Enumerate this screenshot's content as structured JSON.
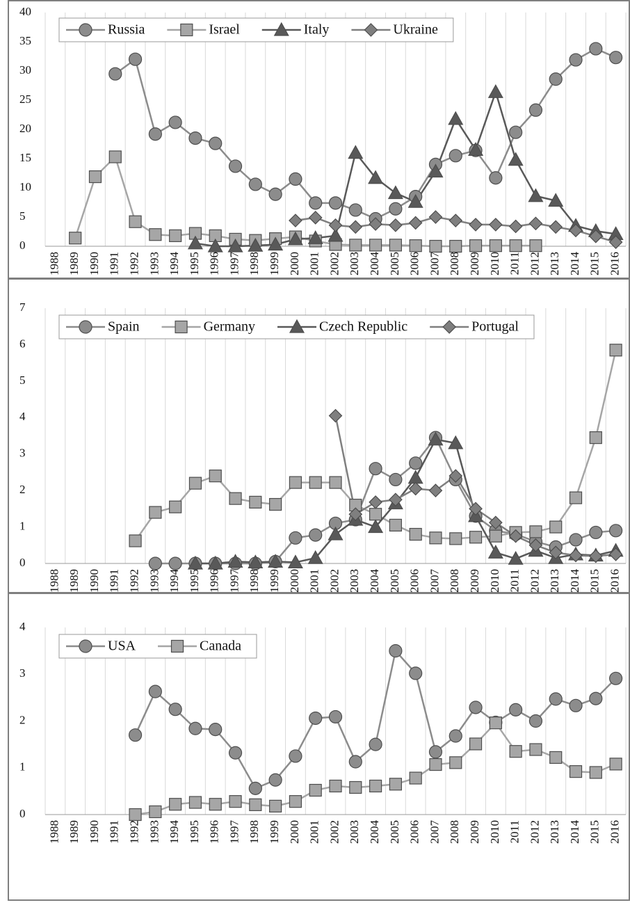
{
  "chart_data": [
    {
      "type": "line",
      "categories": [
        "1988",
        "1989",
        "1990",
        "1991",
        "1992",
        "1993",
        "1994",
        "1995",
        "1996",
        "1997",
        "1998",
        "1999",
        "2000",
        "2001",
        "2002",
        "2003",
        "2004",
        "2005",
        "2006",
        "2007",
        "2008",
        "2009",
        "2010",
        "2011",
        "2012",
        "2013",
        "2014",
        "2015",
        "2016"
      ],
      "ylim": [
        0,
        40
      ],
      "yticks": [
        0,
        5,
        10,
        15,
        20,
        25,
        30,
        35,
        40
      ],
      "legend": "top",
      "series": [
        {
          "name": "Russia",
          "color": "#8c8c8c",
          "marker": "circle",
          "values": [
            null,
            null,
            null,
            29.5,
            32,
            19.2,
            21.2,
            18.5,
            17.6,
            13.7,
            10.6,
            8.9,
            11.5,
            7.4,
            7.4,
            6.2,
            4.7,
            6.4,
            8.5,
            14,
            15.5,
            16.4,
            11.7,
            19.5,
            23.3,
            28.6,
            31.9,
            33.8,
            32.3
          ]
        },
        {
          "name": "Israel",
          "color": "#a6a6a6",
          "marker": "square",
          "values": [
            null,
            1.4,
            11.9,
            15.3,
            4.2,
            2,
            1.8,
            2.2,
            1.8,
            1.2,
            1,
            1.3,
            1.6,
            0.9,
            0.3,
            0.2,
            0.2,
            0.2,
            0.1,
            0,
            0,
            0.1,
            0.1,
            0.1,
            0.1,
            null,
            null,
            null,
            null
          ]
        },
        {
          "name": "Italy",
          "color": "#595959",
          "marker": "triangle",
          "values": [
            null,
            null,
            null,
            null,
            null,
            null,
            null,
            0.5,
            0,
            0,
            0.1,
            0.3,
            1.2,
            1.4,
            1.8,
            16,
            11.7,
            9.1,
            7.6,
            12.8,
            21.8,
            16.5,
            26.4,
            14.8,
            8.6,
            7.8,
            3.5,
            2.6,
            2.1
          ]
        },
        {
          "name": "Ukraine",
          "color": "#7f7f7f",
          "marker": "diamond",
          "values": [
            null,
            null,
            null,
            null,
            null,
            null,
            null,
            null,
            null,
            null,
            null,
            null,
            4.4,
            4.9,
            3.6,
            3.3,
            3.8,
            3.6,
            4,
            5,
            4.4,
            3.7,
            3.7,
            3.4,
            3.9,
            3.3,
            2.7,
            1.7,
            0.7
          ]
        }
      ]
    },
    {
      "type": "line",
      "categories": [
        "1988",
        "1989",
        "1990",
        "1991",
        "1992",
        "1993",
        "1994",
        "1995",
        "1996",
        "1997",
        "1998",
        "1999",
        "2000",
        "2001",
        "2002",
        "2003",
        "2004",
        "2005",
        "2006",
        "2007",
        "2008",
        "2009",
        "2010",
        "2011",
        "2012",
        "2013",
        "2014",
        "2015",
        "2016"
      ],
      "ylim": [
        0,
        7
      ],
      "yticks": [
        0,
        1,
        2,
        3,
        4,
        5,
        6,
        7
      ],
      "legend": "top",
      "series": [
        {
          "name": "Spain",
          "color": "#8c8c8c",
          "marker": "circle",
          "values": [
            null,
            null,
            null,
            null,
            null,
            0,
            0,
            0,
            0,
            0,
            0,
            0.05,
            0.7,
            0.78,
            1.1,
            1.2,
            2.6,
            2.3,
            2.75,
            3.45,
            2.3,
            1.3,
            0.9,
            0.8,
            0.6,
            0.45,
            0.65,
            0.85,
            0.9
          ]
        },
        {
          "name": "Germany",
          "color": "#a6a6a6",
          "marker": "square",
          "values": [
            null,
            null,
            null,
            null,
            0.62,
            1.4,
            1.55,
            2.2,
            2.4,
            1.78,
            1.68,
            1.62,
            2.22,
            2.22,
            2.22,
            1.6,
            1.35,
            1.05,
            0.8,
            0.7,
            0.68,
            0.72,
            0.75,
            0.85,
            0.87,
            1,
            1.8,
            3.45,
            5.85
          ]
        },
        {
          "name": "Czech Republic",
          "color": "#595959",
          "marker": "triangle",
          "values": [
            null,
            null,
            null,
            null,
            null,
            null,
            null,
            0,
            0,
            0.05,
            0.03,
            0.05,
            0.03,
            0.15,
            0.8,
            1.2,
            1,
            1.65,
            2.35,
            3.4,
            3.3,
            1.3,
            0.3,
            0.13,
            0.35,
            0.15,
            0.25,
            0.22,
            0.35
          ]
        },
        {
          "name": "Portugal",
          "color": "#7f7f7f",
          "marker": "diamond",
          "values": [
            null,
            null,
            null,
            null,
            null,
            null,
            null,
            null,
            null,
            null,
            null,
            null,
            null,
            null,
            4.05,
            1.35,
            1.68,
            1.75,
            2.05,
            2,
            2.4,
            1.5,
            1.12,
            0.75,
            0.5,
            0.3,
            0.22,
            0.2,
            0.25
          ]
        }
      ]
    },
    {
      "type": "line",
      "categories": [
        "1988",
        "1989",
        "1990",
        "1991",
        "1992",
        "1993",
        "1994",
        "1995",
        "1996",
        "1997",
        "1998",
        "1999",
        "2000",
        "2001",
        "2002",
        "2003",
        "2004",
        "2005",
        "2006",
        "2007",
        "2008",
        "2009",
        "2010",
        "2011",
        "2012",
        "2013",
        "2014",
        "2015",
        "2016"
      ],
      "ylim": [
        0,
        4
      ],
      "yticks": [
        0,
        1,
        2,
        3,
        4
      ],
      "legend": "top",
      "series": [
        {
          "name": "USA",
          "color": "#8c8c8c",
          "marker": "circle",
          "values": [
            null,
            null,
            null,
            null,
            1.7,
            2.63,
            2.25,
            1.84,
            1.82,
            1.32,
            0.56,
            0.74,
            1.25,
            2.06,
            2.09,
            1.13,
            1.5,
            3.5,
            3.02,
            1.34,
            1.68,
            2.29,
            1.97,
            2.24,
            2,
            2.47,
            2.33,
            2.48,
            2.91
          ]
        },
        {
          "name": "Canada",
          "color": "#a6a6a6",
          "marker": "square",
          "values": [
            null,
            null,
            null,
            null,
            0,
            0.06,
            0.22,
            0.26,
            0.22,
            0.28,
            0.21,
            0.18,
            0.28,
            0.52,
            0.61,
            0.58,
            0.61,
            0.65,
            0.78,
            1.07,
            1.11,
            1.51,
            1.96,
            1.35,
            1.39,
            1.22,
            0.92,
            0.9,
            1.08
          ]
        }
      ]
    }
  ]
}
